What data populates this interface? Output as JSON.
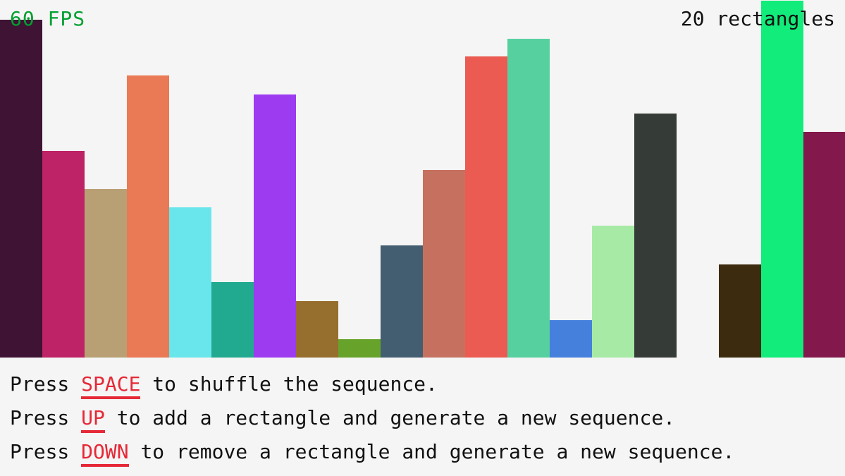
{
  "hud": {
    "fps": "60 FPS",
    "count": "20 rectangles"
  },
  "colors": {
    "background": "#f5f5f5",
    "fps": "#00a030",
    "key": "#e62937"
  },
  "rectangles": [
    {
      "height": 479,
      "color": "#3f1334"
    },
    {
      "height": 293,
      "color": "#be2367"
    },
    {
      "height": 239,
      "color": "#b8a074"
    },
    {
      "height": 400,
      "color": "#ea7a55"
    },
    {
      "height": 213,
      "color": "#69e6ec"
    },
    {
      "height": 107,
      "color": "#22aa90"
    },
    {
      "height": 373,
      "color": "#9d3bf0"
    },
    {
      "height": 80,
      "color": "#966e2e"
    },
    {
      "height": 26,
      "color": "#67a32b"
    },
    {
      "height": 159,
      "color": "#435e70"
    },
    {
      "height": 266,
      "color": "#c6715f"
    },
    {
      "height": 427,
      "color": "#eb5b52"
    },
    {
      "height": 452,
      "color": "#57d09f"
    },
    {
      "height": 53,
      "color": "#4680dd"
    },
    {
      "height": 187,
      "color": "#a7eaa6"
    },
    {
      "height": 346,
      "color": "#353b36"
    },
    {
      "height": 0,
      "color": "#f5f5f5"
    },
    {
      "height": 132,
      "color": "#3d2b10"
    },
    {
      "height": 506,
      "color": "#12ec7b"
    },
    {
      "height": 320,
      "color": "#82184b"
    }
  ],
  "instructions": [
    {
      "pre": "Press ",
      "key": "SPACE",
      "post": " to shuffle the sequence."
    },
    {
      "pre": "Press ",
      "key": "UP",
      "post": " to add a rectangle and generate a new sequence."
    },
    {
      "pre": "Press ",
      "key": "DOWN",
      "post": " to remove a rectangle and generate a new sequence."
    }
  ]
}
